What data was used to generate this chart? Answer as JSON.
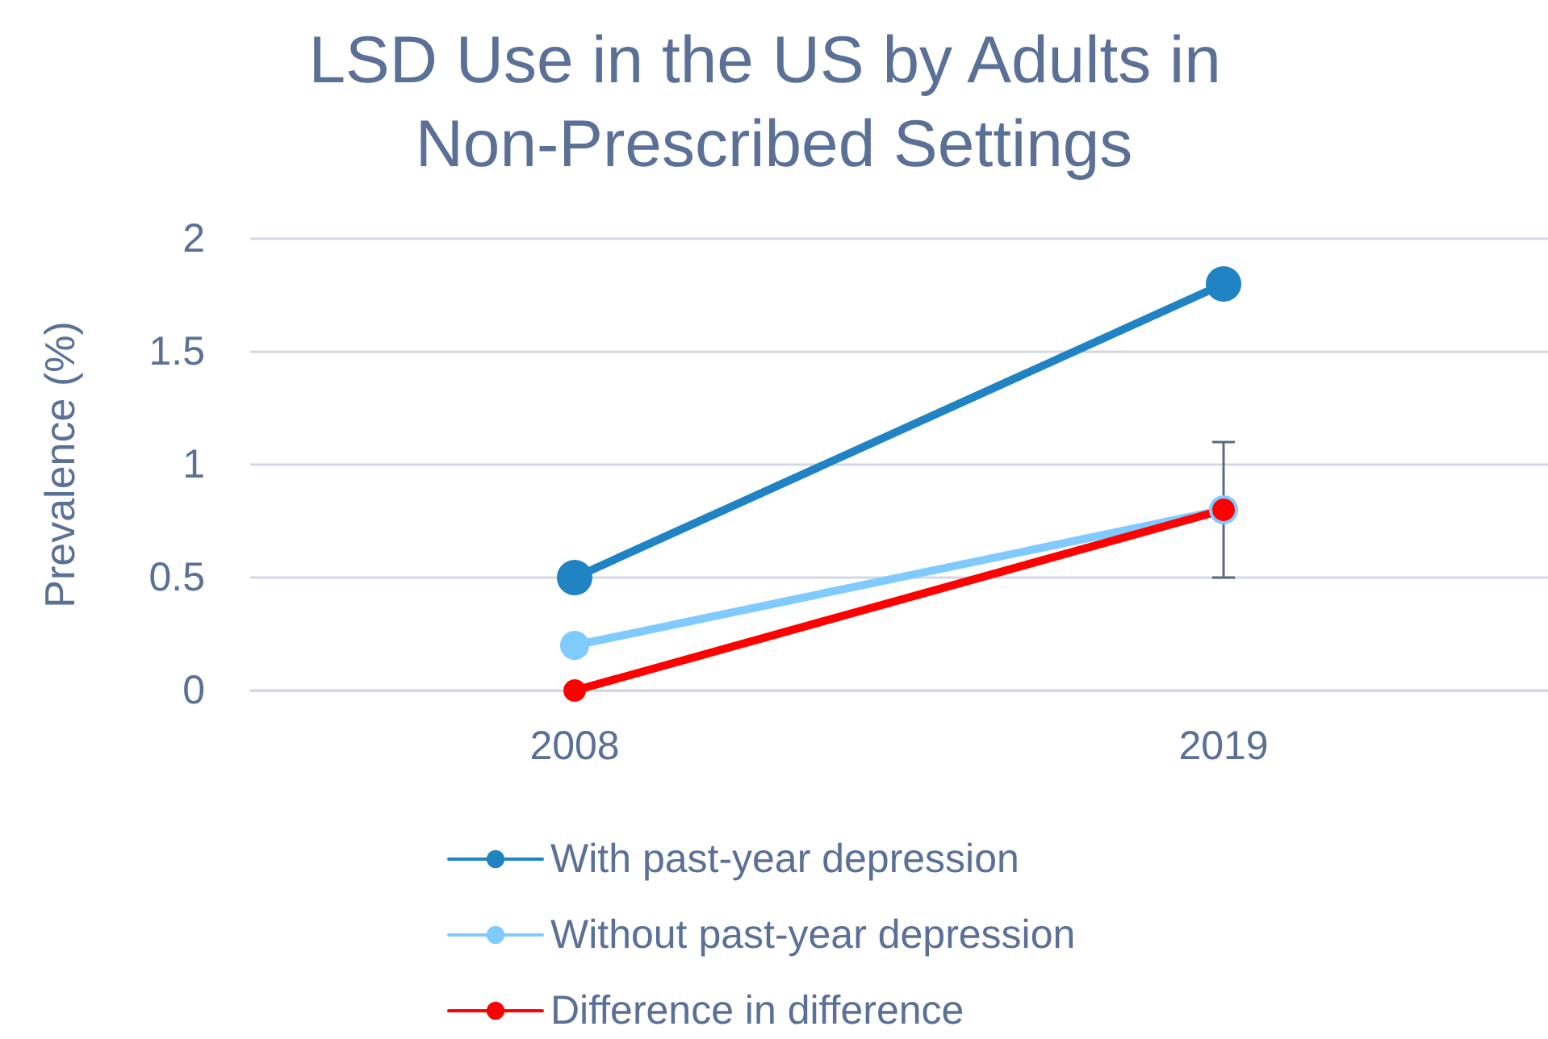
{
  "chart_data": {
    "type": "line",
    "title": "LSD Use in the US by Adults in Non-Prescribed Settings",
    "ylabel": "Prevalence (%)",
    "categories": [
      "2008",
      "2019"
    ],
    "series": [
      {
        "name": "With past-year depression",
        "color": "#1f83c4",
        "values": [
          0.5,
          1.8
        ]
      },
      {
        "name": "Without past-year depression",
        "color": "#7fcbff",
        "values": [
          0.2,
          0.8
        ]
      },
      {
        "name": "Difference in difference",
        "color": "#ff0000",
        "values": [
          0,
          0.8
        ],
        "errors": [
          null,
          [
            0.5,
            1.1
          ]
        ]
      }
    ],
    "ylim": [
      0,
      2
    ],
    "yticks": [
      0,
      0.5,
      1,
      1.5,
      2
    ],
    "grid": "y",
    "legend": "bottom",
    "marker": "circle",
    "line_style": "solid"
  }
}
